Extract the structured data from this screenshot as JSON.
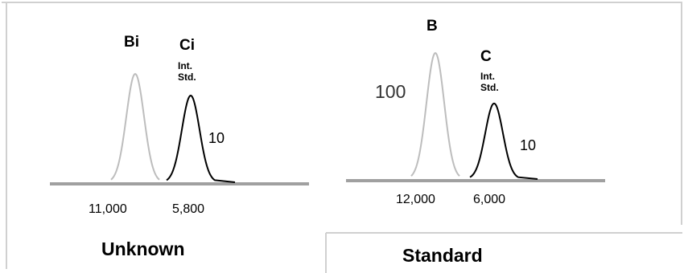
{
  "colors": {
    "analyte": "#bdbdbd",
    "internal_standard": "#000000",
    "baseline": "#a0a0a0",
    "frame": "#d0d0d0"
  },
  "chart_data": [
    {
      "type": "line",
      "title": "Unknown",
      "peaks": [
        {
          "name": "Bi",
          "sublabel": "",
          "area_label": "11,000",
          "height_label": "",
          "color": "#bdbdbd",
          "relative_height": 1.0
        },
        {
          "name": "Ci",
          "sublabel": "Int. Std.",
          "area_label": "5,800",
          "height_label": "10",
          "color": "#000000",
          "relative_height": 0.8
        }
      ]
    },
    {
      "type": "line",
      "title": "Standard",
      "peaks": [
        {
          "name": "B",
          "sublabel": "",
          "area_label": "12,000",
          "height_label": "100",
          "color": "#bdbdbd",
          "relative_height": 1.0
        },
        {
          "name": "C",
          "sublabel": "Int. Std.",
          "area_label": "6,000",
          "height_label": "10",
          "color": "#000000",
          "relative_height": 0.6
        }
      ]
    }
  ]
}
